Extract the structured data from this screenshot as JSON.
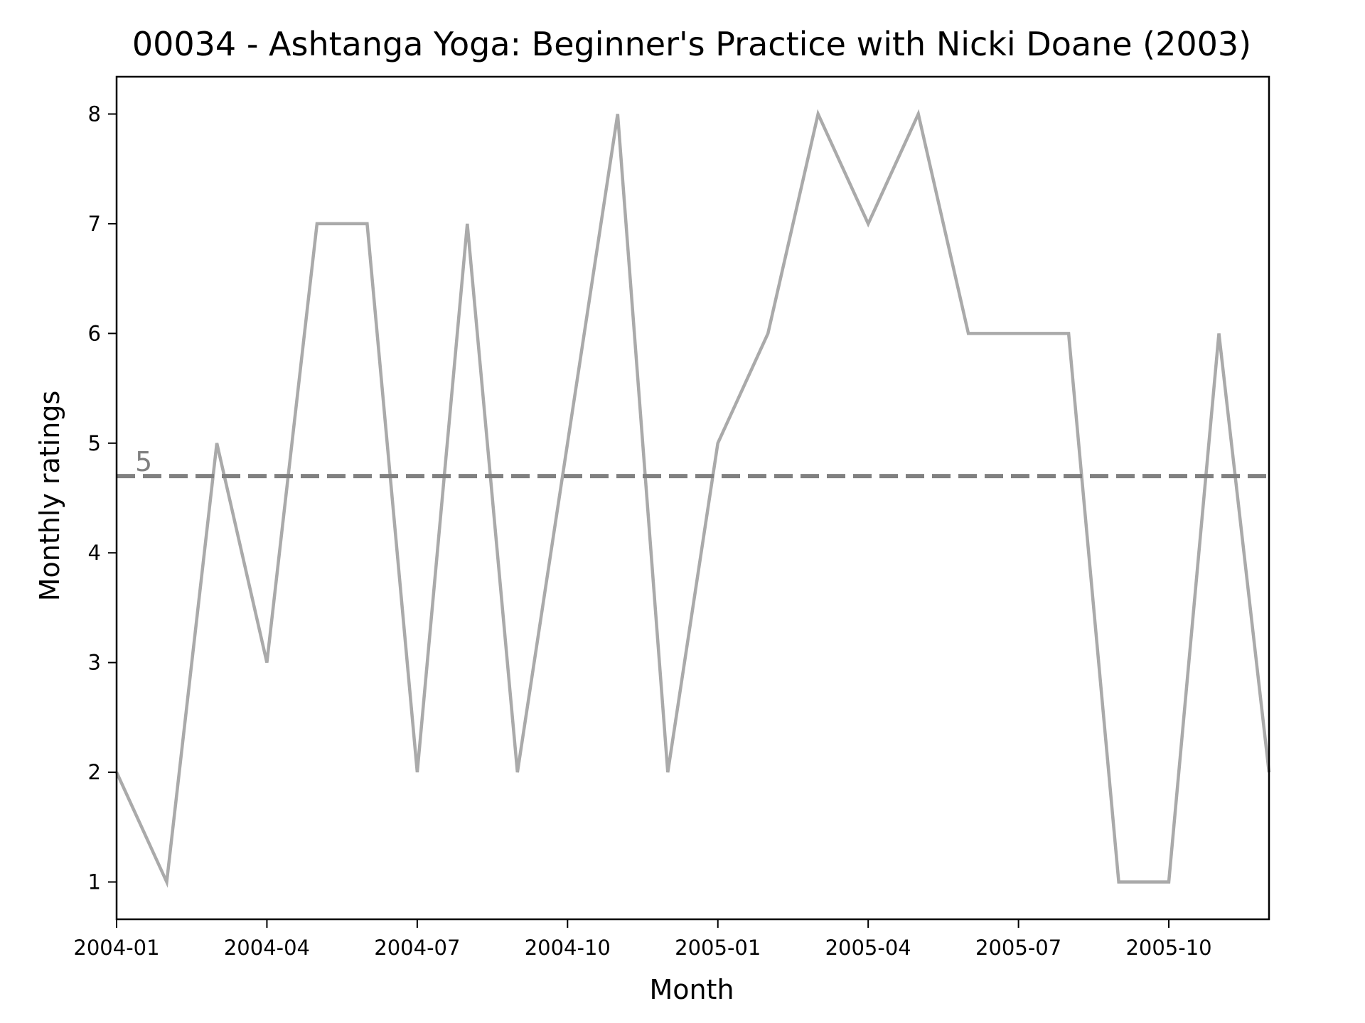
{
  "chart_data": {
    "type": "line",
    "title": "00034 - Ashtanga Yoga: Beginner's Practice with Nicki Doane (2003)",
    "xlabel": "Month",
    "ylabel": "Monthly ratings",
    "x": [
      "2004-01",
      "2004-02",
      "2004-03",
      "2004-04",
      "2004-05",
      "2004-06",
      "2004-07",
      "2004-08",
      "2004-09",
      "2004-10",
      "2004-11",
      "2004-12",
      "2005-01",
      "2005-02",
      "2005-03",
      "2005-04",
      "2005-05",
      "2005-06",
      "2005-07",
      "2005-08",
      "2005-09",
      "2005-10",
      "2005-11",
      "2005-12"
    ],
    "series": [
      {
        "values": [
          2,
          1,
          5,
          3,
          7,
          7,
          2,
          7,
          2,
          5,
          8,
          2,
          5,
          6,
          8,
          7,
          8,
          6,
          6,
          6,
          1,
          1,
          6,
          2
        ],
        "color": "#aaaaaa"
      }
    ],
    "xlim": [
      "2004-01",
      "2005-12"
    ],
    "ylim": [
      0.66,
      8.34
    ],
    "x_ticks": [
      "2004-01",
      "2004-04",
      "2004-07",
      "2004-10",
      "2005-01",
      "2005-04",
      "2005-07",
      "2005-10"
    ],
    "y_ticks": [
      1,
      2,
      3,
      4,
      5,
      6,
      7,
      8
    ],
    "reference_line": {
      "value": 4.7,
      "label": "5",
      "style": "dashed",
      "color": "#808080"
    },
    "grid": false,
    "legend": "none"
  }
}
